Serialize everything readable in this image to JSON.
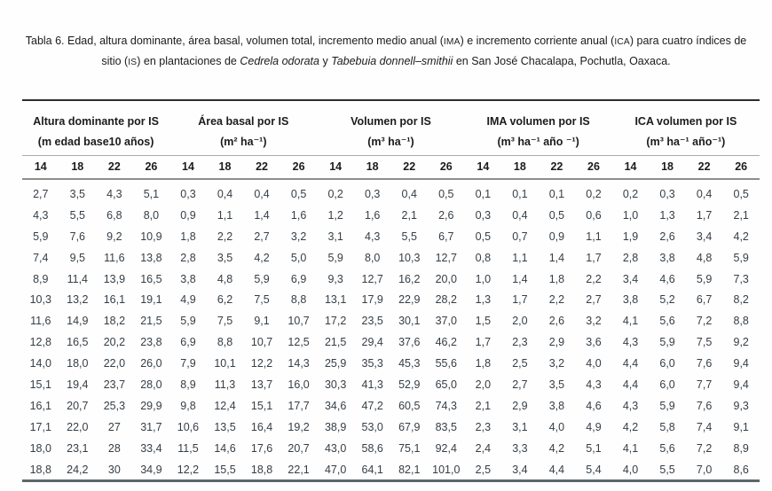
{
  "caption": {
    "parts": [
      {
        "text": "Tabla 6. Edad, altura dominante, área basal, volumen total, incremento medio anual ("
      },
      {
        "text": "IMA",
        "style": "smallcaps"
      },
      {
        "text": ") e incremento corriente anual ("
      },
      {
        "text": "ICA",
        "style": "smallcaps"
      },
      {
        "text": ") para cuatro índices de sitio ("
      },
      {
        "text": "IS",
        "style": "smallcaps"
      },
      {
        "text": ") en plantaciones de "
      },
      {
        "text": "Cedrela odorata",
        "style": "italic"
      },
      {
        "text": " y "
      },
      {
        "text": "Tabebuia donnell–smithii",
        "style": "italic"
      },
      {
        "text": " en San José Chacalapa, Pochutla, Oaxaca."
      }
    ]
  },
  "table": {
    "groups": [
      {
        "title": "Altura dominante por IS",
        "unit": "(m edad base10 años)"
      },
      {
        "title": "Área basal por IS",
        "unit": "(m² ha⁻¹)"
      },
      {
        "title": "Volumen por IS",
        "unit": "(m³ ha⁻¹)"
      },
      {
        "title": "IMA volumen por IS",
        "unit": "(m³ ha⁻¹ año ⁻¹)"
      },
      {
        "title": "ICA volumen por IS",
        "unit": "(m³ ha⁻¹ año⁻¹)"
      }
    ],
    "site_index_headers": [
      "14",
      "18",
      "22",
      "26"
    ],
    "rows": [
      [
        "2,7",
        "3,5",
        "4,3",
        "5,1",
        "0,3",
        "0,4",
        "0,4",
        "0,5",
        "0,2",
        "0,3",
        "0,4",
        "0,5",
        "0,1",
        "0,1",
        "0,1",
        "0,2",
        "0,2",
        "0,3",
        "0,4",
        "0,5"
      ],
      [
        "4,3",
        "5,5",
        "6,8",
        "8,0",
        "0,9",
        "1,1",
        "1,4",
        "1,6",
        "1,2",
        "1,6",
        "2,1",
        "2,6",
        "0,3",
        "0,4",
        "0,5",
        "0,6",
        "1,0",
        "1,3",
        "1,7",
        "2,1"
      ],
      [
        "5,9",
        "7,6",
        "9,2",
        "10,9",
        "1,8",
        "2,2",
        "2,7",
        "3,2",
        "3,1",
        "4,3",
        "5,5",
        "6,7",
        "0,5",
        "0,7",
        "0,9",
        "1,1",
        "1,9",
        "2,6",
        "3,4",
        "4,2"
      ],
      [
        "7,4",
        "9,5",
        "11,6",
        "13,8",
        "2,8",
        "3,5",
        "4,2",
        "5,0",
        "5,9",
        "8,0",
        "10,3",
        "12,7",
        "0,8",
        "1,1",
        "1,4",
        "1,7",
        "2,8",
        "3,8",
        "4,8",
        "5,9"
      ],
      [
        "8,9",
        "11,4",
        "13,9",
        "16,5",
        "3,8",
        "4,8",
        "5,9",
        "6,9",
        "9,3",
        "12,7",
        "16,2",
        "20,0",
        "1,0",
        "1,4",
        "1,8",
        "2,2",
        "3,4",
        "4,6",
        "5,9",
        "7,3"
      ],
      [
        "10,3",
        "13,2",
        "16,1",
        "19,1",
        "4,9",
        "6,2",
        "7,5",
        "8,8",
        "13,1",
        "17,9",
        "22,9",
        "28,2",
        "1,3",
        "1,7",
        "2,2",
        "2,7",
        "3,8",
        "5,2",
        "6,7",
        "8,2"
      ],
      [
        "11,6",
        "14,9",
        "18,2",
        "21,5",
        "5,9",
        "7,5",
        "9,1",
        "10,7",
        "17,2",
        "23,5",
        "30,1",
        "37,0",
        "1,5",
        "2,0",
        "2,6",
        "3,2",
        "4,1",
        "5,6",
        "7,2",
        "8,8"
      ],
      [
        "12,8",
        "16,5",
        "20,2",
        "23,8",
        "6,9",
        "8,8",
        "10,7",
        "12,5",
        "21,5",
        "29,4",
        "37,6",
        "46,2",
        "1,7",
        "2,3",
        "2,9",
        "3,6",
        "4,3",
        "5,9",
        "7,5",
        "9,2"
      ],
      [
        "14,0",
        "18,0",
        "22,0",
        "26,0",
        "7,9",
        "10,1",
        "12,2",
        "14,3",
        "25,9",
        "35,3",
        "45,3",
        "55,6",
        "1,8",
        "2,5",
        "3,2",
        "4,0",
        "4,4",
        "6,0",
        "7,6",
        "9,4"
      ],
      [
        "15,1",
        "19,4",
        "23,7",
        "28,0",
        "8,9",
        "11,3",
        "13,7",
        "16,0",
        "30,3",
        "41,3",
        "52,9",
        "65,0",
        "2,0",
        "2,7",
        "3,5",
        "4,3",
        "4,4",
        "6,0",
        "7,7",
        "9,4"
      ],
      [
        "16,1",
        "20,7",
        "25,3",
        "29,9",
        "9,8",
        "12,4",
        "15,1",
        "17,7",
        "34,6",
        "47,2",
        "60,5",
        "74,3",
        "2,1",
        "2,9",
        "3,8",
        "4,6",
        "4,3",
        "5,9",
        "7,6",
        "9,3"
      ],
      [
        "17,1",
        "22,0",
        "27",
        "31,7",
        "10,6",
        "13,5",
        "16,4",
        "19,2",
        "38,9",
        "53,0",
        "67,9",
        "83,5",
        "2,3",
        "3,1",
        "4,0",
        "4,9",
        "4,2",
        "5,8",
        "7,4",
        "9,1"
      ],
      [
        "18,0",
        "23,1",
        "28",
        "33,4",
        "11,5",
        "14,6",
        "17,6",
        "20,7",
        "43,0",
        "58,6",
        "75,1",
        "92,4",
        "2,4",
        "3,3",
        "4,2",
        "5,1",
        "4,1",
        "5,6",
        "7,2",
        "8,9"
      ],
      [
        "18,8",
        "24,2",
        "30",
        "34,9",
        "12,2",
        "15,5",
        "18,8",
        "22,1",
        "47,0",
        "64,1",
        "82,1",
        "101,0",
        "2,5",
        "3,4",
        "4,4",
        "5,4",
        "4,0",
        "5,5",
        "7,0",
        "8,6"
      ]
    ]
  }
}
